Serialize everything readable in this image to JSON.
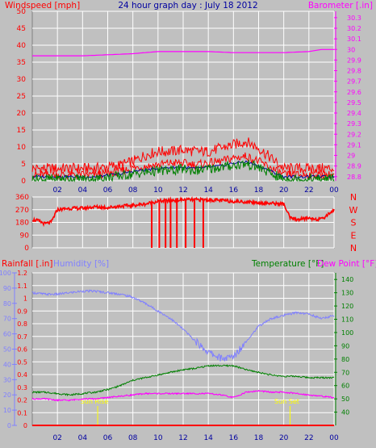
{
  "colors": {
    "bg": "#c0c0c0",
    "wind": "#ff0000",
    "gust_fill": "#ff0000",
    "dark_blue": "#0000a0",
    "green": "#008000",
    "magenta": "#ff00ff",
    "title": "#0000a0",
    "humidity": "#8080ff",
    "grid": "#ffffff",
    "sun": "#ffff00"
  },
  "chart_data": [
    {
      "type": "line",
      "panel": "wind-barometer",
      "title": "24 hour graph day : July 18 2012",
      "left_label": "Windspeed [mph]",
      "right_label": "Barometer [.in]",
      "x_ticks": [
        "02",
        "04",
        "06",
        "08",
        "10",
        "12",
        "14",
        "16",
        "18",
        "20",
        "22",
        "00"
      ],
      "y_left_ticks": [
        0,
        5,
        10,
        15,
        20,
        25,
        30,
        35,
        40,
        45,
        50
      ],
      "y_left_range": [
        0,
        50
      ],
      "y_right_ticks": [
        28.8,
        28.9,
        29,
        29.1,
        29.2,
        29.3,
        29.4,
        29.5,
        29.6,
        29.7,
        29.8,
        29.9,
        30,
        30.1,
        30.2,
        30.3
      ],
      "y_right_range": [
        28.76,
        30.36
      ],
      "grid": true,
      "series": [
        {
          "key": "gust",
          "x": [
            0,
            1,
            2,
            3,
            4,
            5,
            6,
            7,
            8,
            9,
            10,
            11,
            12,
            13,
            14,
            15,
            16,
            17,
            18,
            19,
            20,
            21,
            22,
            23,
            24
          ],
          "y": [
            3,
            3,
            3,
            3,
            3,
            3,
            3.5,
            4,
            5,
            7,
            8,
            8,
            8.5,
            8,
            8,
            9,
            10,
            11,
            9,
            6,
            3,
            3,
            3,
            3,
            3
          ]
        },
        {
          "key": "wind",
          "x": [
            0,
            1,
            2,
            3,
            4,
            5,
            6,
            7,
            8,
            9,
            10,
            11,
            12,
            13,
            14,
            15,
            16,
            17,
            18,
            19,
            20,
            21,
            22,
            23,
            24
          ],
          "y": [
            1.5,
            1.5,
            1.5,
            1.5,
            1.5,
            1.5,
            2,
            2.5,
            3.5,
            4,
            4.5,
            5,
            5,
            4.5,
            5,
            5.5,
            6.5,
            7,
            5.5,
            3.5,
            1.5,
            1.5,
            1.5,
            1.5,
            1.5
          ]
        },
        {
          "key": "avg",
          "x": [
            0,
            1,
            2,
            3,
            4,
            5,
            6,
            7,
            8,
            9,
            10,
            11,
            12,
            13,
            14,
            15,
            16,
            17,
            18,
            19,
            20,
            21,
            22,
            23,
            24
          ],
          "y": [
            0.5,
            0.5,
            0.5,
            0.5,
            0.5,
            0.5,
            1,
            1.5,
            2,
            2.5,
            3,
            3,
            3.5,
            3,
            3.5,
            4,
            4.5,
            5,
            4,
            2,
            0.5,
            0.5,
            0.5,
            0.5,
            0.5
          ]
        },
        {
          "key": "barometer",
          "x": [
            0,
            2,
            4,
            6,
            8,
            10,
            12,
            14,
            16,
            18,
            20,
            22,
            23,
            24
          ],
          "y": [
            29.94,
            29.94,
            29.94,
            29.95,
            29.96,
            29.98,
            29.98,
            29.98,
            29.97,
            29.97,
            29.97,
            29.98,
            30.0,
            30.0
          ]
        }
      ]
    },
    {
      "type": "line",
      "panel": "wind-direction",
      "right_label_letters": [
        "N",
        "W",
        "S",
        "E",
        "N"
      ],
      "y_ticks": [
        0,
        90,
        180,
        270,
        360
      ],
      "y_range": [
        0,
        360
      ],
      "grid": true,
      "series": [
        {
          "key": "direction",
          "x": [
            0,
            0.5,
            1,
            1.5,
            2,
            3,
            4,
            5,
            6,
            7,
            8,
            9,
            10,
            11,
            12,
            13,
            14,
            15,
            16,
            17,
            18,
            19,
            20,
            20.5,
            21,
            22,
            23,
            24
          ],
          "y": [
            200,
            190,
            170,
            180,
            270,
            280,
            280,
            290,
            285,
            295,
            300,
            310,
            330,
            335,
            340,
            340,
            340,
            335,
            330,
            325,
            320,
            315,
            310,
            210,
            200,
            210,
            200,
            270
          ]
        },
        {
          "key": "drops",
          "x": [
            9.5,
            10.1,
            10.6,
            11.0,
            11.5,
            12.2,
            12.9,
            13.6
          ],
          "y": [
            0,
            0,
            0,
            0,
            0,
            0,
            0,
            0
          ]
        }
      ]
    },
    {
      "type": "line",
      "panel": "rain-hum-temp",
      "left_label_1": "Rainfall [.in]",
      "left_label_2": "Humidity [%]",
      "right_label_1": "Temperature [°F]",
      "right_label_2": "Dew Point [°F]",
      "x_ticks": [
        "02",
        "04",
        "06",
        "08",
        "10",
        "12",
        "14",
        "16",
        "18",
        "20",
        "22",
        "00"
      ],
      "y_rain_ticks": [
        0,
        0.1,
        0.2,
        0.3,
        0.4,
        0.5,
        0.6,
        0.7,
        0.8,
        0.9,
        1,
        1.1,
        1.2
      ],
      "y_rain_range": [
        0,
        1.2
      ],
      "y_hum_ticks": [
        0,
        10,
        20,
        30,
        40,
        50,
        60,
        70,
        80,
        90,
        100
      ],
      "y_hum_range": [
        0,
        100
      ],
      "y_temp_ticks": [
        40,
        50,
        60,
        70,
        80,
        90,
        100,
        110,
        120,
        130,
        140
      ],
      "y_temp_range": [
        30,
        145
      ],
      "sun_labels": [
        "Sun Rise",
        "Sun Set"
      ],
      "sun_x": [
        5.2,
        20.5
      ],
      "grid": true,
      "series": [
        {
          "key": "humidity",
          "x": [
            0,
            1,
            2,
            3,
            4,
            5,
            6,
            7,
            8,
            9,
            10,
            11,
            12,
            13,
            14,
            15,
            15.5,
            16,
            17,
            18,
            19,
            20,
            21,
            22,
            23,
            24
          ],
          "y": [
            87,
            86,
            86,
            87,
            88,
            88,
            87,
            86,
            84,
            80,
            75,
            70,
            63,
            55,
            48,
            44,
            44,
            45,
            55,
            65,
            70,
            72,
            74,
            73,
            70,
            72
          ]
        },
        {
          "key": "temperature",
          "x": [
            0,
            1,
            2,
            3,
            4,
            5,
            6,
            7,
            8,
            9,
            10,
            11,
            12,
            13,
            14,
            15,
            16,
            17,
            18,
            19,
            20,
            21,
            22,
            23,
            24
          ],
          "y": [
            55,
            55,
            54,
            53,
            54,
            55,
            57,
            60,
            64,
            66,
            68,
            70,
            72,
            73,
            75,
            75,
            75,
            72,
            70,
            68,
            67,
            67,
            66,
            66,
            66
          ]
        },
        {
          "key": "dewpoint",
          "x": [
            0,
            1,
            2,
            3,
            4,
            5,
            6,
            7,
            8,
            9,
            10,
            11,
            12,
            13,
            14,
            15,
            16,
            17,
            18,
            19,
            20,
            21,
            22,
            23,
            24
          ],
          "y": [
            50,
            50,
            49,
            49,
            50,
            50,
            51,
            52,
            53,
            54,
            54,
            54,
            54,
            54,
            54,
            53,
            51,
            55,
            56,
            55,
            55,
            54,
            53,
            52,
            51
          ]
        },
        {
          "key": "rain",
          "x": [
            0,
            24
          ],
          "y": [
            0,
            0
          ]
        }
      ]
    }
  ]
}
